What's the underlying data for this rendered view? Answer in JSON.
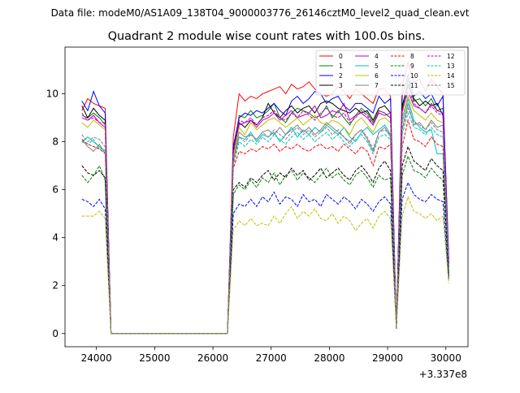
{
  "figure": {
    "suptitle": "Data file: modeM0/AS1A09_138T04_9000003776_26146cztM0_level2_quad_clean.evt",
    "title": "Quadrant 2 module wise count rates with 100.0s bins.",
    "offset_text": "+3.337e8"
  },
  "chart_data": {
    "type": "line",
    "title": "Quadrant 2 module wise count rates with 100.0s bins.",
    "xlabel": "",
    "ylabel": "",
    "x_offset": 333700000,
    "xlim": [
      23460,
      30380
    ],
    "ylim": [
      -0.55,
      11.95
    ],
    "xticks": [
      24000,
      25000,
      26000,
      27000,
      28000,
      29000,
      30000
    ],
    "yticks": [
      0,
      2,
      4,
      6,
      8,
      10
    ],
    "grid": false,
    "legend_position": "top-right",
    "x": [
      23750,
      23850,
      23950,
      24050,
      24150,
      24250,
      24350,
      24450,
      24550,
      24650,
      24750,
      24850,
      24950,
      25050,
      25150,
      25250,
      25350,
      25450,
      25550,
      25650,
      25750,
      25850,
      25950,
      26050,
      26150,
      26250,
      26350,
      26450,
      26550,
      26650,
      26750,
      26850,
      26950,
      27050,
      27150,
      27250,
      27350,
      27450,
      27550,
      27650,
      27750,
      27850,
      27950,
      28050,
      28150,
      28250,
      28350,
      28450,
      28550,
      28650,
      28750,
      28850,
      28950,
      29050,
      29150,
      29250,
      29350,
      29450,
      29550,
      29650,
      29750,
      29850,
      29950,
      30050
    ],
    "series": [
      {
        "name": "0",
        "color": "#ff0000",
        "dash": "solid",
        "values": [
          9.3,
          9.8,
          9.6,
          9.5,
          9.4,
          0,
          0,
          0,
          0,
          0,
          0,
          0,
          0,
          0,
          0,
          0,
          0,
          0,
          0,
          0,
          0,
          0,
          0,
          0,
          0,
          0,
          8.2,
          10.0,
          9.7,
          9.9,
          9.8,
          10.0,
          10.1,
          10.2,
          10.3,
          10.0,
          10.4,
          10.2,
          10.3,
          10.5,
          10.2,
          10.0,
          9.9,
          10.0,
          10.3,
          10.1,
          9.8,
          10.2,
          10.0,
          9.8,
          9.6,
          10.2,
          10.2,
          9.9,
          0.2,
          10.3,
          11.3,
          10.5,
          10.6,
          10.1,
          10.6,
          10.3,
          10.0,
          3.0
        ]
      },
      {
        "name": "1",
        "color": "#008000",
        "dash": "solid",
        "values": [
          9.1,
          9.0,
          9.2,
          9.0,
          8.7,
          0,
          0,
          0,
          0,
          0,
          0,
          0,
          0,
          0,
          0,
          0,
          0,
          0,
          0,
          0,
          0,
          0,
          0,
          0,
          0,
          0,
          7.5,
          9.1,
          9.0,
          9.3,
          9.0,
          9.1,
          9.3,
          9.6,
          9.0,
          8.8,
          9.2,
          9.4,
          9.3,
          9.2,
          9.0,
          9.1,
          9.5,
          9.0,
          9.3,
          9.0,
          8.7,
          9.1,
          9.4,
          9.2,
          8.8,
          9.3,
          9.2,
          9.0,
          0.3,
          9.3,
          10.6,
          9.7,
          9.8,
          9.5,
          9.8,
          9.3,
          9.4,
          2.9
        ]
      },
      {
        "name": "2",
        "color": "#0000ff",
        "dash": "solid",
        "values": [
          9.7,
          9.3,
          10.1,
          9.5,
          9.2,
          0,
          0,
          0,
          0,
          0,
          0,
          0,
          0,
          0,
          0,
          0,
          0,
          0,
          0,
          0,
          0,
          0,
          0,
          0,
          0,
          0,
          7.8,
          9.0,
          9.2,
          9.1,
          9.3,
          9.2,
          9.4,
          9.6,
          9.3,
          9.1,
          9.7,
          9.9,
          9.6,
          9.8,
          10.1,
          10.0,
          9.6,
          9.8,
          9.9,
          9.5,
          9.3,
          9.6,
          9.6,
          9.4,
          9.2,
          9.9,
          9.6,
          9.8,
          0.2,
          9.9,
          10.8,
          9.9,
          10.1,
          9.8,
          10.0,
          9.5,
          9.9,
          3.1
        ]
      },
      {
        "name": "3",
        "color": "#000000",
        "dash": "solid",
        "values": [
          9.5,
          9.0,
          9.4,
          9.1,
          8.9,
          0,
          0,
          0,
          0,
          0,
          0,
          0,
          0,
          0,
          0,
          0,
          0,
          0,
          0,
          0,
          0,
          0,
          0,
          0,
          0,
          0,
          7.6,
          8.8,
          8.6,
          8.9,
          8.7,
          9.0,
          9.6,
          9.2,
          9.0,
          9.3,
          9.5,
          9.2,
          9.4,
          9.5,
          9.2,
          9.6,
          9.7,
          9.6,
          9.4,
          9.3,
          9.2,
          9.4,
          9.2,
          9.3,
          8.9,
          9.4,
          9.5,
          9.2,
          0.2,
          9.5,
          10.4,
          9.8,
          9.5,
          9.7,
          9.5,
          9.6,
          9.1,
          2.9
        ]
      },
      {
        "name": "4",
        "color": "#bf00bf",
        "dash": "solid",
        "values": [
          9.0,
          8.9,
          9.1,
          8.8,
          8.6,
          0,
          0,
          0,
          0,
          0,
          0,
          0,
          0,
          0,
          0,
          0,
          0,
          0,
          0,
          0,
          0,
          0,
          0,
          0,
          0,
          0,
          7.4,
          8.7,
          8.8,
          8.9,
          8.6,
          8.9,
          9.0,
          9.2,
          8.9,
          9.1,
          9.3,
          9.0,
          9.1,
          9.2,
          9.5,
          9.0,
          9.1,
          9.3,
          9.2,
          9.6,
          8.9,
          9.1,
          9.2,
          9.0,
          8.7,
          9.2,
          9.1,
          9.2,
          0.2,
          9.3,
          10.1,
          9.5,
          9.4,
          9.2,
          9.6,
          9.3,
          9.2,
          2.8
        ]
      },
      {
        "name": "5",
        "color": "#00bfbf",
        "dash": "solid",
        "values": [
          8.0,
          8.2,
          8.0,
          7.8,
          7.6,
          0,
          0,
          0,
          0,
          0,
          0,
          0,
          0,
          0,
          0,
          0,
          0,
          0,
          0,
          0,
          0,
          0,
          0,
          0,
          0,
          0,
          7.2,
          8.2,
          8.1,
          8.4,
          8.0,
          8.3,
          8.2,
          8.4,
          8.0,
          8.3,
          8.6,
          8.2,
          8.5,
          8.3,
          8.6,
          8.4,
          8.7,
          8.5,
          8.3,
          8.6,
          8.2,
          8.0,
          8.4,
          8.6,
          8.3,
          8.5,
          8.7,
          8.3,
          0.2,
          8.8,
          9.8,
          8.9,
          8.6,
          8.4,
          8.5,
          7.5,
          7.5,
          2.7
        ]
      },
      {
        "name": "6",
        "color": "#bfbf00",
        "dash": "solid",
        "values": [
          8.8,
          8.6,
          8.9,
          8.7,
          8.5,
          0,
          0,
          0,
          0,
          0,
          0,
          0,
          0,
          0,
          0,
          0,
          0,
          0,
          0,
          0,
          0,
          0,
          0,
          0,
          0,
          0,
          7.4,
          8.6,
          8.3,
          8.8,
          8.5,
          8.7,
          8.9,
          9.0,
          8.8,
          8.6,
          8.8,
          9.0,
          8.7,
          8.9,
          9.1,
          8.8,
          8.7,
          8.9,
          8.8,
          8.6,
          8.3,
          8.8,
          9.0,
          8.7,
          8.4,
          8.9,
          9.0,
          8.8,
          0.2,
          9.0,
          9.9,
          9.3,
          9.1,
          8.9,
          9.2,
          8.9,
          8.8,
          2.8
        ]
      },
      {
        "name": "7",
        "color": "#808080",
        "dash": "solid",
        "values": [
          8.1,
          7.8,
          7.6,
          7.9,
          7.5,
          0,
          0,
          0,
          0,
          0,
          0,
          0,
          0,
          0,
          0,
          0,
          0,
          0,
          0,
          0,
          0,
          0,
          0,
          0,
          0,
          0,
          7.2,
          8.4,
          8.2,
          8.3,
          8.1,
          8.4,
          8.5,
          8.3,
          8.6,
          8.3,
          8.5,
          8.7,
          8.4,
          8.6,
          8.3,
          8.5,
          8.8,
          8.6,
          8.4,
          8.2,
          8.0,
          8.3,
          8.5,
          8.1,
          7.6,
          8.4,
          8.6,
          8.2,
          0.2,
          8.5,
          9.6,
          8.7,
          8.8,
          8.5,
          8.9,
          8.6,
          8.7,
          2.8
        ]
      },
      {
        "name": "8",
        "color": "#ff0000",
        "dash": "dashed",
        "values": [
          8.1,
          7.9,
          7.8,
          7.7,
          7.5,
          0,
          0,
          0,
          0,
          0,
          0,
          0,
          0,
          0,
          0,
          0,
          0,
          0,
          0,
          0,
          0,
          0,
          0,
          0,
          0,
          0,
          6.9,
          7.6,
          7.5,
          7.7,
          7.6,
          7.8,
          7.7,
          7.9,
          7.6,
          7.8,
          7.7,
          7.9,
          7.7,
          7.6,
          7.8,
          7.9,
          7.7,
          7.8,
          7.6,
          7.9,
          7.7,
          7.5,
          7.8,
          7.6,
          7.0,
          7.8,
          7.7,
          7.9,
          0.2,
          7.8,
          8.9,
          8.1,
          8.0,
          7.8,
          8.2,
          7.9,
          7.8,
          2.5
        ]
      },
      {
        "name": "9",
        "color": "#008000",
        "dash": "dashed",
        "values": [
          6.6,
          6.3,
          6.6,
          7.0,
          6.4,
          0,
          0,
          0,
          0,
          0,
          0,
          0,
          0,
          0,
          0,
          0,
          0,
          0,
          0,
          0,
          0,
          0,
          0,
          0,
          0,
          0,
          5.8,
          6.2,
          6.0,
          6.4,
          6.1,
          6.5,
          6.3,
          6.7,
          6.2,
          6.6,
          6.8,
          6.4,
          6.7,
          6.5,
          6.3,
          6.6,
          6.9,
          6.5,
          6.7,
          6.4,
          6.2,
          6.6,
          6.8,
          6.5,
          6.1,
          6.6,
          6.4,
          6.5,
          0.2,
          6.6,
          7.4,
          6.8,
          6.7,
          6.5,
          6.9,
          6.6,
          6.4,
          2.3
        ]
      },
      {
        "name": "10",
        "color": "#0000ff",
        "dash": "dashed",
        "values": [
          5.6,
          5.5,
          5.3,
          5.6,
          5.2,
          0,
          0,
          0,
          0,
          0,
          0,
          0,
          0,
          0,
          0,
          0,
          0,
          0,
          0,
          0,
          0,
          0,
          0,
          0,
          0,
          0,
          5.0,
          5.4,
          5.3,
          5.6,
          5.3,
          5.7,
          5.5,
          5.9,
          5.4,
          5.7,
          5.6,
          5.3,
          5.8,
          5.5,
          5.6,
          5.3,
          5.8,
          5.6,
          5.4,
          5.7,
          5.5,
          5.2,
          5.6,
          5.4,
          5.1,
          5.5,
          5.7,
          5.4,
          0.2,
          5.6,
          6.3,
          5.8,
          5.6,
          5.5,
          5.8,
          5.6,
          5.5,
          2.2
        ]
      },
      {
        "name": "11",
        "color": "#000000",
        "dash": "dashed",
        "values": [
          7.0,
          6.7,
          6.6,
          6.8,
          6.5,
          0,
          0,
          0,
          0,
          0,
          0,
          0,
          0,
          0,
          0,
          0,
          0,
          0,
          0,
          0,
          0,
          0,
          0,
          0,
          0,
          0,
          6.0,
          6.3,
          6.1,
          6.5,
          6.3,
          6.6,
          6.8,
          6.4,
          6.7,
          6.5,
          6.9,
          6.6,
          6.8,
          6.4,
          6.6,
          6.9,
          6.5,
          6.7,
          6.9,
          6.6,
          6.4,
          6.8,
          7.0,
          6.7,
          6.3,
          6.9,
          7.2,
          6.8,
          0.2,
          7.0,
          7.8,
          7.2,
          7.0,
          6.8,
          7.3,
          7.0,
          6.8,
          2.4
        ]
      },
      {
        "name": "12",
        "color": "#bf00bf",
        "dash": "dashed",
        "values": [
          9.2,
          8.9,
          9.0,
          8.8,
          8.8,
          0,
          0,
          0,
          0,
          0,
          0,
          0,
          0,
          0,
          0,
          0,
          0,
          0,
          0,
          0,
          0,
          0,
          0,
          0,
          0,
          0,
          7.6,
          8.9,
          8.8,
          9.0,
          8.7,
          9.0,
          9.1,
          9.3,
          9.0,
          8.9,
          9.2,
          9.0,
          9.3,
          9.1,
          8.9,
          9.2,
          9.4,
          9.1,
          9.0,
          9.2,
          8.8,
          9.0,
          9.3,
          9.1,
          8.7,
          9.3,
          9.2,
          9.0,
          0.2,
          9.2,
          10.3,
          9.6,
          9.4,
          9.2,
          9.5,
          9.2,
          9.1,
          2.9
        ]
      },
      {
        "name": "13",
        "color": "#00bfbf",
        "dash": "dashed",
        "values": [
          8.0,
          7.9,
          8.1,
          7.7,
          7.7,
          0,
          0,
          0,
          0,
          0,
          0,
          0,
          0,
          0,
          0,
          0,
          0,
          0,
          0,
          0,
          0,
          0,
          0,
          0,
          0,
          0,
          7.0,
          8.0,
          7.8,
          8.1,
          7.9,
          8.2,
          8.0,
          8.3,
          8.1,
          7.9,
          8.2,
          8.4,
          8.1,
          8.3,
          8.0,
          8.2,
          8.4,
          8.1,
          8.3,
          8.0,
          7.8,
          8.1,
          8.3,
          8.0,
          7.5,
          8.2,
          8.3,
          8.1,
          0.2,
          8.3,
          9.2,
          8.6,
          8.5,
          8.3,
          8.6,
          8.3,
          8.2,
          2.6
        ]
      },
      {
        "name": "14",
        "color": "#bfbf00",
        "dash": "dashed",
        "values": [
          4.9,
          4.9,
          4.9,
          5.1,
          4.8,
          0,
          0,
          0,
          0,
          0,
          0,
          0,
          0,
          0,
          0,
          0,
          0,
          0,
          0,
          0,
          0,
          0,
          0,
          0,
          0,
          0,
          4.3,
          4.7,
          4.5,
          4.8,
          4.5,
          4.6,
          4.5,
          4.9,
          4.6,
          5.0,
          5.3,
          4.8,
          5.1,
          4.9,
          5.2,
          4.8,
          4.7,
          5.0,
          4.6,
          4.9,
          4.7,
          4.3,
          4.6,
          4.8,
          4.4,
          4.9,
          5.1,
          4.8,
          0.2,
          4.9,
          5.7,
          5.1,
          5.0,
          4.8,
          5.0,
          4.7,
          4.9,
          2.1
        ]
      },
      {
        "name": "15",
        "color": "#808080",
        "dash": "dashed",
        "values": [
          8.3,
          8.0,
          8.2,
          8.1,
          7.8,
          0,
          0,
          0,
          0,
          0,
          0,
          0,
          0,
          0,
          0,
          0,
          0,
          0,
          0,
          0,
          0,
          0,
          0,
          0,
          0,
          0,
          7.1,
          8.2,
          8.0,
          8.3,
          8.1,
          8.4,
          8.2,
          8.5,
          8.3,
          8.1,
          8.4,
          8.6,
          8.3,
          8.5,
          8.2,
          8.4,
          8.6,
          8.3,
          8.5,
          8.2,
          7.9,
          8.3,
          8.5,
          8.2,
          7.7,
          8.4,
          8.5,
          8.3,
          0.2,
          8.5,
          9.4,
          8.8,
          8.7,
          8.5,
          8.8,
          8.5,
          8.4,
          2.7
        ]
      }
    ]
  }
}
